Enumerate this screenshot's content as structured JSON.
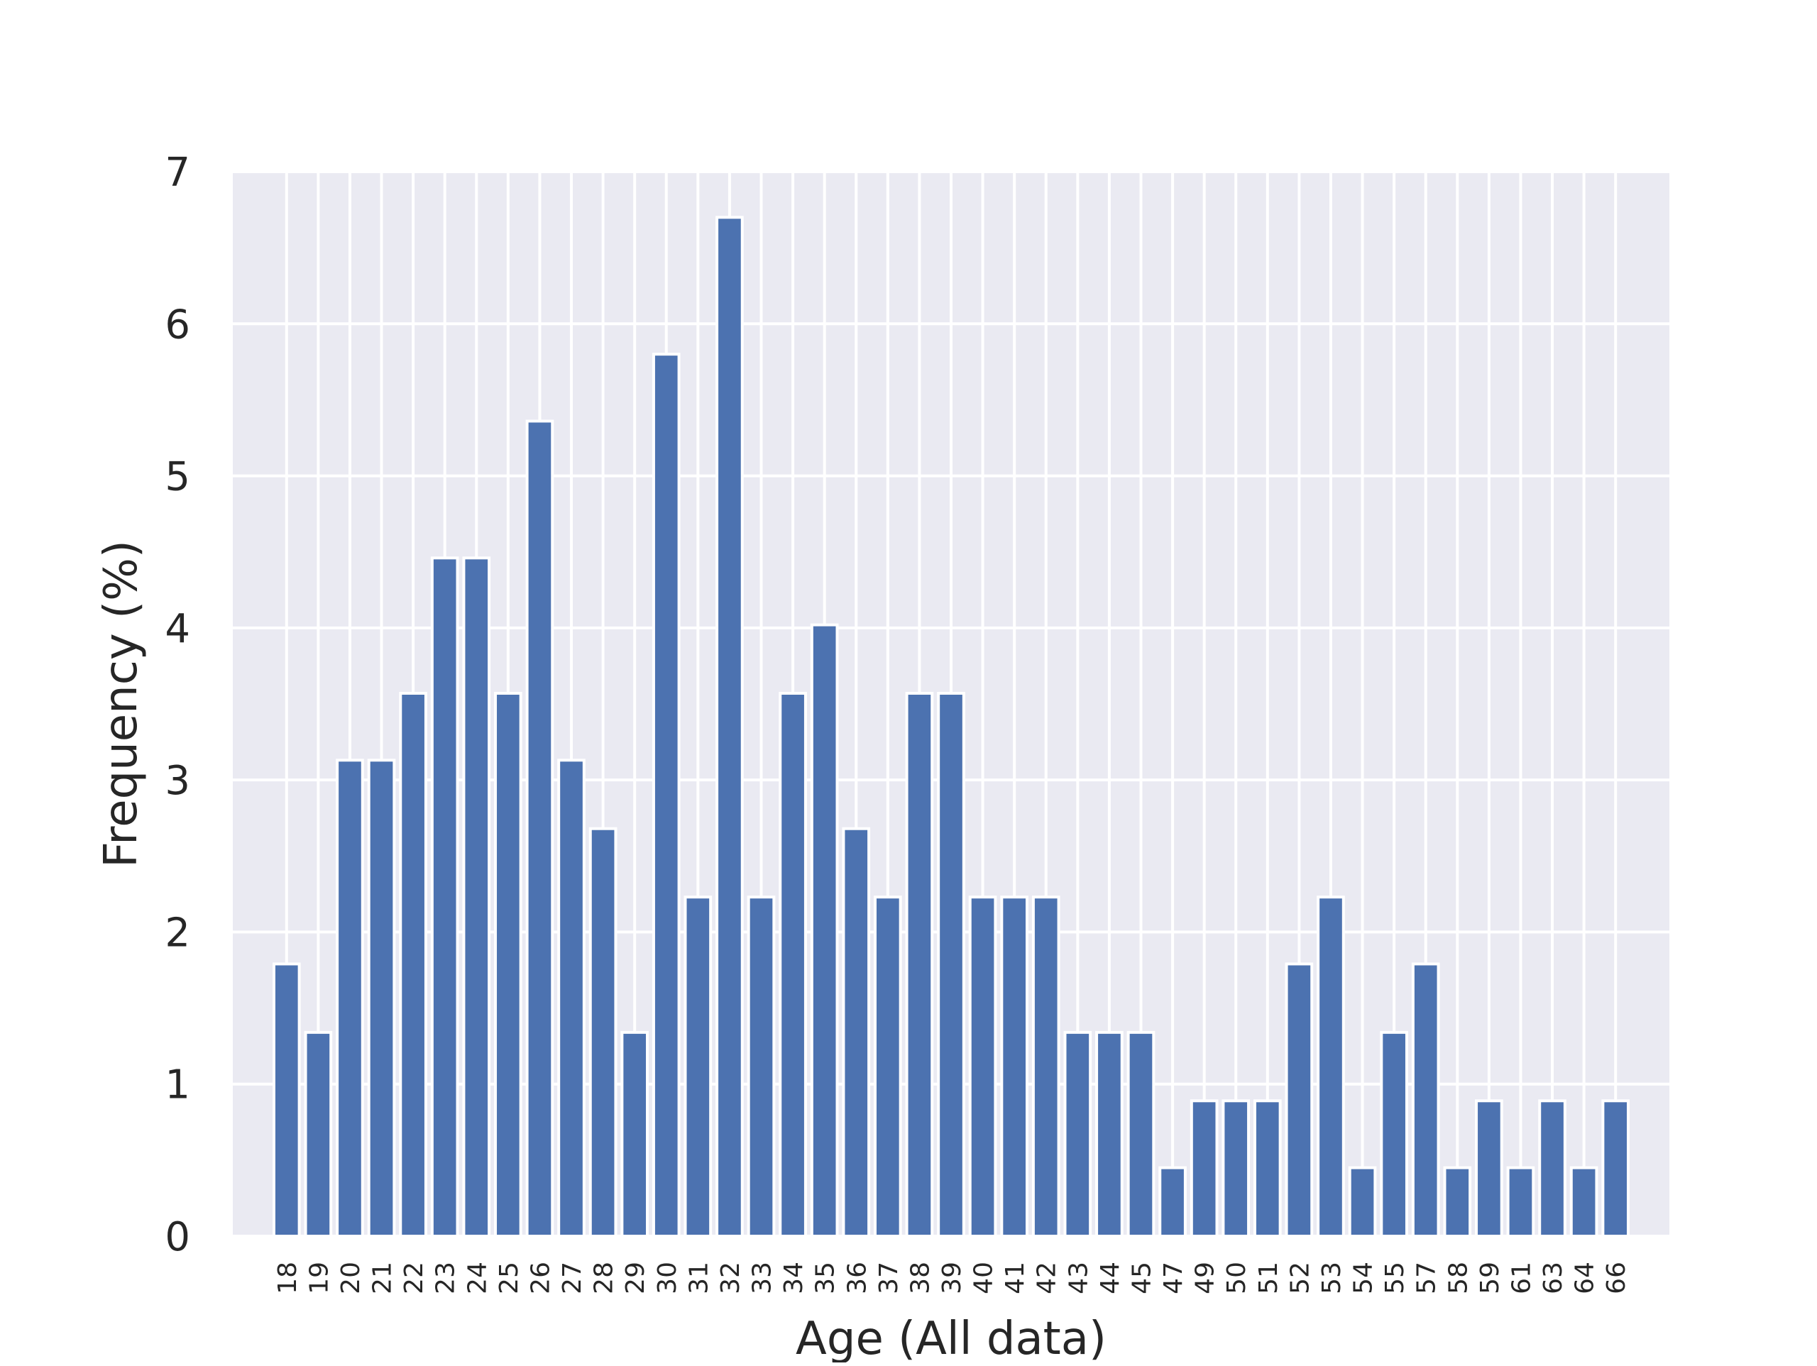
{
  "chart_data": {
    "type": "bar",
    "title": "",
    "xlabel": "Age (All data)",
    "ylabel": "Frequency (%)",
    "ylim": [
      0,
      7
    ],
    "yticks": [
      0,
      1,
      2,
      3,
      4,
      5,
      6,
      7
    ],
    "grid": true,
    "legend": "none",
    "colors": {
      "bar": "#4c72b0",
      "background": "#eaeaf2",
      "grid": "#ffffff"
    },
    "categories": [
      "18",
      "19",
      "20",
      "21",
      "22",
      "23",
      "24",
      "25",
      "26",
      "27",
      "28",
      "29",
      "30",
      "31",
      "32",
      "33",
      "34",
      "35",
      "36",
      "37",
      "38",
      "39",
      "40",
      "41",
      "42",
      "43",
      "44",
      "45",
      "47",
      "49",
      "50",
      "51",
      "52",
      "53",
      "54",
      "55",
      "57",
      "58",
      "59",
      "61",
      "63",
      "64",
      "66"
    ],
    "values": [
      1.79,
      1.34,
      3.13,
      3.13,
      3.57,
      4.46,
      4.46,
      3.57,
      5.36,
      3.13,
      2.68,
      1.34,
      5.8,
      2.23,
      6.7,
      2.23,
      3.57,
      4.02,
      2.68,
      2.23,
      3.57,
      3.57,
      2.23,
      2.23,
      2.23,
      1.34,
      1.34,
      1.34,
      0.45,
      0.89,
      0.89,
      0.89,
      1.79,
      2.23,
      0.45,
      1.34,
      1.79,
      0.45,
      0.89,
      0.45,
      0.89,
      0.45,
      0.89
    ]
  }
}
